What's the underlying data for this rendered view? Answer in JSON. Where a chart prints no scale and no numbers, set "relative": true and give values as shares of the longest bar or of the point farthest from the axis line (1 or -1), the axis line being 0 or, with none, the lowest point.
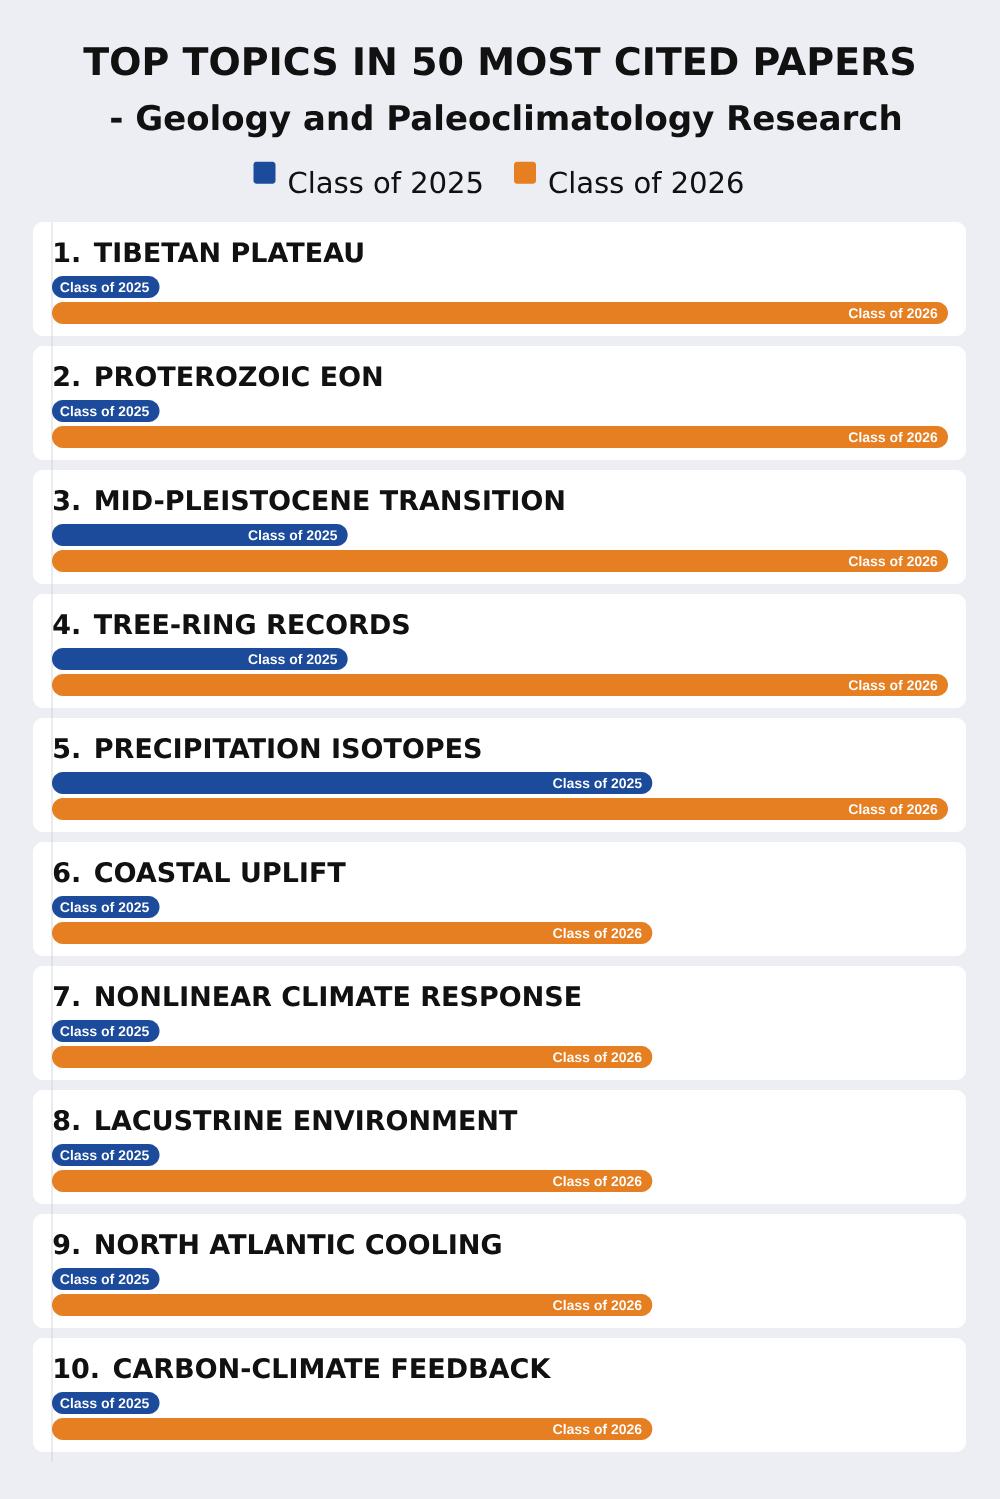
{
  "chart_data": {
    "type": "bar",
    "orientation": "horizontal",
    "relative": true,
    "title": "TOP TOPICS IN 50 MOST CITED PAPERS",
    "subtitle": "- Geology and Paleoclimatology Research",
    "legend": "top",
    "categories": [
      "1. TIBETAN PLATEAU",
      "2. PROTEROZOIC EON",
      "3. MID-PLEISTOCENE TRANSITION",
      "4. TREE-RING RECORDS",
      "5. PRECIPITATION ISOTOPES",
      "6. COASTAL UPLIFT",
      "7. NONLINEAR CLIMATE RESPONSE",
      "8. LACUSTRINE ENVIRONMENT",
      "9. NORTH ATLANTIC COOLING",
      "10. CARBON-CLIMATE FEEDBACK"
    ],
    "series": [
      {
        "name": "Class of 2025",
        "color": "#1c4b9c",
        "values": [
          0.12,
          0.12,
          0.33,
          0.33,
          0.67,
          0.12,
          0.12,
          0.12,
          0.12,
          0.12
        ]
      },
      {
        "name": "Class of 2026",
        "color": "#e67e22",
        "values": [
          1,
          1,
          1,
          1,
          1,
          0.67,
          0.67,
          0.67,
          0.67,
          0.67
        ]
      }
    ]
  }
}
